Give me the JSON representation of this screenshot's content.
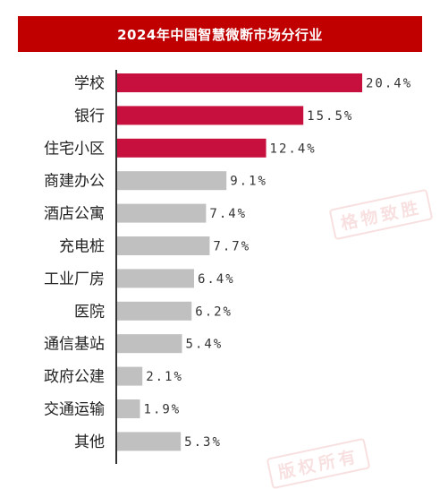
{
  "title": "2024年中国智慧微断市场分行业",
  "watermark_text": "格物致胜",
  "watermark_text_bottom": "版权所有",
  "colors": {
    "highlight": "#c8103e",
    "normal": "#c0c0c0",
    "title_bg": "#c00000"
  },
  "chart_data": {
    "type": "bar",
    "orientation": "horizontal",
    "title": "2024年中国智慧微断市场分行业",
    "categories": [
      "学校",
      "银行",
      "住宅小区",
      "商建办公",
      "酒店公寓",
      "充电桩",
      "工业厂房",
      "医院",
      "通信基站",
      "政府公建",
      "交通运输",
      "其他"
    ],
    "values": [
      20.4,
      15.5,
      12.4,
      9.1,
      7.4,
      7.7,
      6.4,
      6.2,
      5.4,
      2.1,
      1.9,
      5.3
    ],
    "labels": [
      "20.4%",
      "15.5%",
      "12.4%",
      "9.1%",
      "7.4%",
      "7.7%",
      "6.4%",
      "6.2%",
      "5.4%",
      "2.1%",
      "1.9%",
      "5.3%"
    ],
    "highlighted": [
      true,
      true,
      true,
      false,
      false,
      false,
      false,
      false,
      false,
      false,
      false,
      false
    ],
    "unit": "%",
    "xlim": [
      0,
      20.4
    ],
    "grid": false
  }
}
